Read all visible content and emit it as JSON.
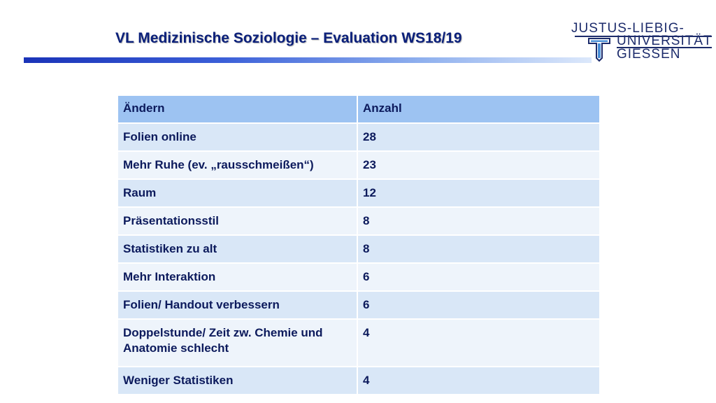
{
  "title": "VL Medizinische Soziologie – Evaluation WS18/19",
  "logo": {
    "line1": "JUSTUS-LIEBIG-",
    "line2": "UNIVERSITÄT",
    "line3": "GIESSEN",
    "emblem_icon": "university-t-emblem-icon"
  },
  "table": {
    "headers": [
      "Ändern",
      "Anzahl"
    ],
    "rows": [
      [
        "Folien online",
        "28"
      ],
      [
        "Mehr Ruhe (ev. „rausschmeißen“)",
        "23"
      ],
      [
        "Raum",
        "12"
      ],
      [
        "Präsentationsstil",
        "8"
      ],
      [
        "Statistiken zu alt",
        "8"
      ],
      [
        "Mehr Interaktion",
        "6"
      ],
      [
        "Folien/ Handout verbessern",
        "6"
      ],
      [
        "Doppelstunde/ Zeit zw. Chemie und Anatomie schlecht",
        "4"
      ],
      [
        "Weniger Statistiken",
        "4"
      ]
    ]
  },
  "colors": {
    "title": "#0a1f7a",
    "header_bg": "#9dc3f2",
    "row_odd_bg": "#d9e7f7",
    "row_even_bg": "#eef4fb",
    "logo": "#1c2b6b"
  }
}
